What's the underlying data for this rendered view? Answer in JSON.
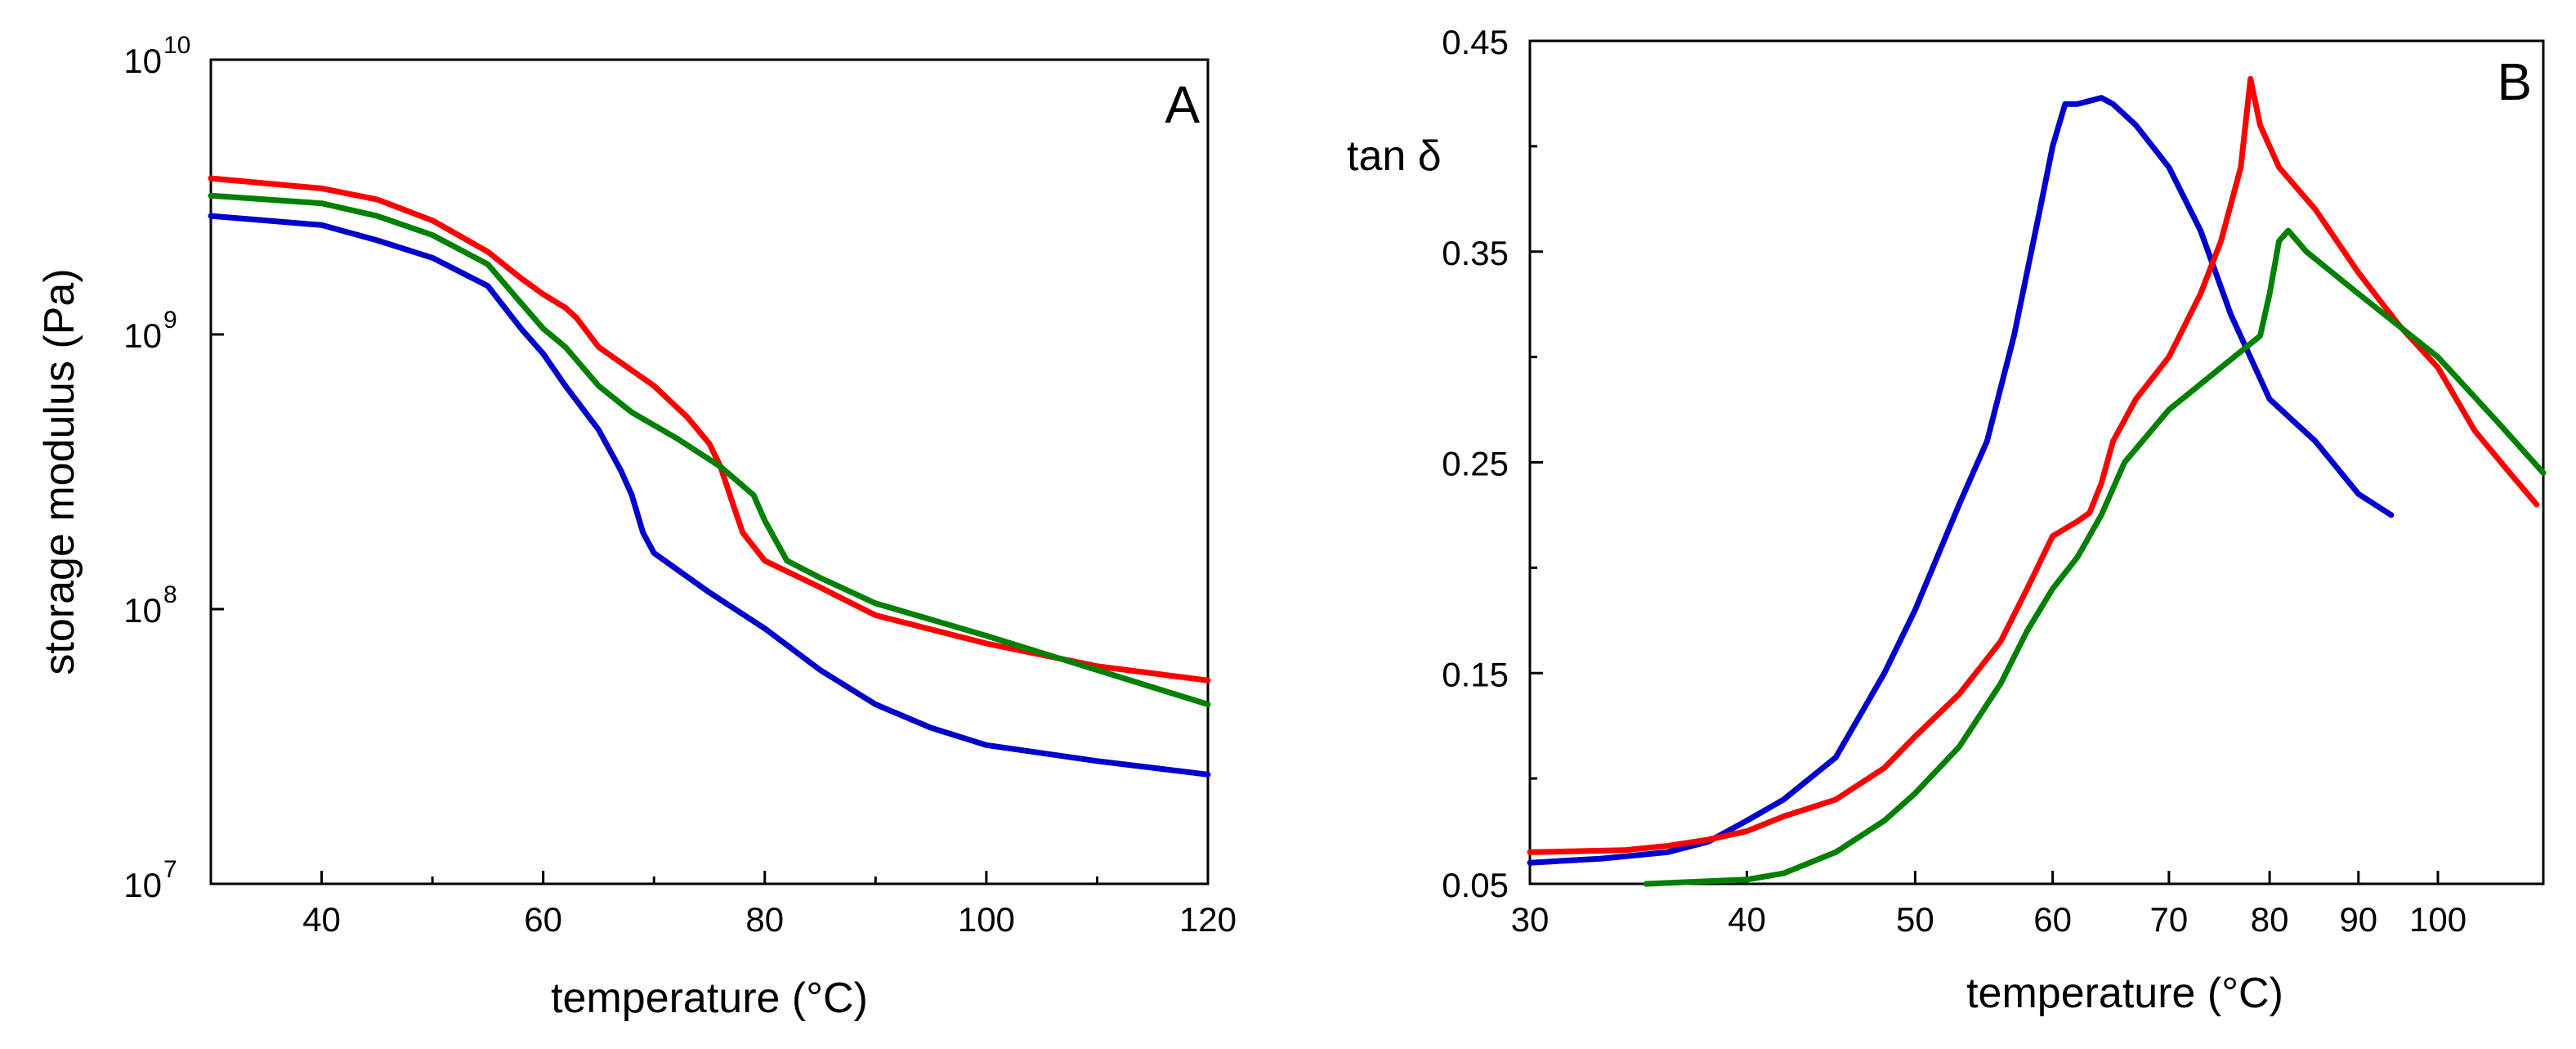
{
  "chart_data": [
    {
      "type": "line",
      "panel_label": "A",
      "xlabel": "temperature (°C)",
      "ylabel": "storage modulus (Pa)",
      "xlim": [
        30,
        120
      ],
      "ylim": [
        10000000,
        10000000000
      ],
      "yscale": "log",
      "xticks": [
        40,
        60,
        80,
        100,
        120
      ],
      "xtick_labels": [
        "40",
        "60",
        "80",
        "100",
        "120"
      ],
      "yticks": [
        {
          "value": 10000000,
          "base": "10",
          "exp": "7"
        },
        {
          "value": 100000000,
          "base": "10",
          "exp": "8"
        },
        {
          "value": 1000000000,
          "base": "10",
          "exp": "9"
        },
        {
          "value": 10000000000,
          "base": "10",
          "exp": "10"
        }
      ],
      "series": [
        {
          "name": "red",
          "color": "#ff0000",
          "points": [
            [
              30,
              3700000000.0
            ],
            [
              40,
              3400000000.0
            ],
            [
              45,
              3100000000.0
            ],
            [
              50,
              2600000000.0
            ],
            [
              55,
              2000000000.0
            ],
            [
              58,
              1600000000.0
            ],
            [
              60,
              1400000000.0
            ],
            [
              62,
              1250000000.0
            ],
            [
              63,
              1150000000.0
            ],
            [
              65,
              900000000.0
            ],
            [
              70,
              650000000.0
            ],
            [
              73,
              500000000.0
            ],
            [
              75,
              400000000.0
            ],
            [
              76,
              330000000.0
            ],
            [
              77,
              250000000.0
            ],
            [
              78,
              190000000.0
            ],
            [
              80,
              150000000.0
            ],
            [
              85,
              120000000.0
            ],
            [
              90,
              95000000.0
            ],
            [
              100,
              75000000.0
            ],
            [
              110,
              62000000.0
            ],
            [
              120,
              55000000.0
            ]
          ]
        },
        {
          "name": "green",
          "color": "#008000",
          "points": [
            [
              30,
              3200000000.0
            ],
            [
              40,
              3000000000.0
            ],
            [
              45,
              2700000000.0
            ],
            [
              50,
              2300000000.0
            ],
            [
              55,
              1800000000.0
            ],
            [
              58,
              1300000000.0
            ],
            [
              60,
              1050000000.0
            ],
            [
              62,
              900000000.0
            ],
            [
              65,
              650000000.0
            ],
            [
              68,
              520000000.0
            ],
            [
              72,
              420000000.0
            ],
            [
              76,
              330000000.0
            ],
            [
              79,
              260000000.0
            ],
            [
              80,
              210000000.0
            ],
            [
              82,
              150000000.0
            ],
            [
              85,
              130000000.0
            ],
            [
              90,
              105000000.0
            ],
            [
              100,
              80000000.0
            ],
            [
              110,
              60000000.0
            ],
            [
              120,
              45000000.0
            ]
          ]
        },
        {
          "name": "blue",
          "color": "#0000cc",
          "points": [
            [
              30,
              2700000000.0
            ],
            [
              40,
              2500000000.0
            ],
            [
              45,
              2200000000.0
            ],
            [
              50,
              1900000000.0
            ],
            [
              55,
              1500000000.0
            ],
            [
              58,
              1050000000.0
            ],
            [
              60,
              850000000.0
            ],
            [
              62,
              650000000.0
            ],
            [
              65,
              450000000.0
            ],
            [
              67,
              320000000.0
            ],
            [
              68,
              260000000.0
            ],
            [
              69,
              190000000.0
            ],
            [
              70,
              160000000.0
            ],
            [
              75,
              115000000.0
            ],
            [
              80,
              85000000.0
            ],
            [
              85,
              60000000.0
            ],
            [
              90,
              45000000.0
            ],
            [
              95,
              37000000.0
            ],
            [
              100,
              32000000.0
            ],
            [
              110,
              28000000.0
            ],
            [
              120,
              25000000.0
            ]
          ]
        }
      ]
    },
    {
      "type": "line",
      "panel_label": "B",
      "xlabel": "temperature (°C)",
      "ylabel": "tan δ",
      "xlim": [
        30,
        115
      ],
      "ylim": [
        0.05,
        0.45
      ],
      "xscale": "log",
      "xticks": [
        30,
        40,
        50,
        60,
        70,
        80,
        90,
        100
      ],
      "xtick_labels": [
        "30",
        "40",
        "50",
        "60",
        "70",
        "80",
        "90",
        "100"
      ],
      "yticks": [
        0.05,
        0.15,
        0.25,
        0.35,
        0.45
      ],
      "ytick_labels": [
        "0.05",
        "0.15",
        "0.25",
        "0.35",
        "0.45"
      ],
      "series": [
        {
          "name": "blue",
          "color": "#0000cc",
          "points": [
            [
              30,
              0.06
            ],
            [
              33,
              0.062
            ],
            [
              36,
              0.065
            ],
            [
              38,
              0.07
            ],
            [
              40,
              0.08
            ],
            [
              42,
              0.09
            ],
            [
              45,
              0.11
            ],
            [
              48,
              0.15
            ],
            [
              50,
              0.18
            ],
            [
              53,
              0.23
            ],
            [
              55,
              0.26
            ],
            [
              57,
              0.31
            ],
            [
              59,
              0.37
            ],
            [
              60,
              0.4
            ],
            [
              61,
              0.42
            ],
            [
              62,
              0.42
            ],
            [
              64,
              0.423
            ],
            [
              65,
              0.42
            ],
            [
              67,
              0.41
            ],
            [
              70,
              0.39
            ],
            [
              73,
              0.36
            ],
            [
              76,
              0.32
            ],
            [
              80,
              0.28
            ],
            [
              85,
              0.26
            ],
            [
              90,
              0.235
            ],
            [
              94,
              0.225
            ]
          ]
        },
        {
          "name": "red",
          "color": "#ff0000",
          "points": [
            [
              30,
              0.065
            ],
            [
              34,
              0.066
            ],
            [
              36,
              0.068
            ],
            [
              38,
              0.071
            ],
            [
              40,
              0.075
            ],
            [
              42,
              0.082
            ],
            [
              45,
              0.09
            ],
            [
              48,
              0.105
            ],
            [
              50,
              0.12
            ],
            [
              53,
              0.14
            ],
            [
              56,
              0.165
            ],
            [
              58,
              0.19
            ],
            [
              60,
              0.215
            ],
            [
              62,
              0.222
            ],
            [
              63,
              0.226
            ],
            [
              64,
              0.24
            ],
            [
              65,
              0.26
            ],
            [
              67,
              0.28
            ],
            [
              70,
              0.3
            ],
            [
              73,
              0.33
            ],
            [
              75,
              0.355
            ],
            [
              77,
              0.39
            ],
            [
              78,
              0.432
            ],
            [
              79,
              0.41
            ],
            [
              81,
              0.39
            ],
            [
              85,
              0.37
            ],
            [
              90,
              0.34
            ],
            [
              95,
              0.315
            ],
            [
              100,
              0.295
            ],
            [
              105,
              0.265
            ],
            [
              110,
              0.245
            ],
            [
              114,
              0.23
            ]
          ]
        },
        {
          "name": "green",
          "color": "#008000",
          "points": [
            [
              35,
              0.05
            ],
            [
              40,
              0.052
            ],
            [
              42,
              0.055
            ],
            [
              45,
              0.065
            ],
            [
              48,
              0.08
            ],
            [
              50,
              0.093
            ],
            [
              53,
              0.115
            ],
            [
              56,
              0.145
            ],
            [
              58,
              0.17
            ],
            [
              60,
              0.19
            ],
            [
              62,
              0.205
            ],
            [
              64,
              0.225
            ],
            [
              66,
              0.25
            ],
            [
              70,
              0.275
            ],
            [
              75,
              0.295
            ],
            [
              79,
              0.31
            ],
            [
              80,
              0.33
            ],
            [
              81,
              0.355
            ],
            [
              82,
              0.36
            ],
            [
              84,
              0.35
            ],
            [
              90,
              0.33
            ],
            [
              100,
              0.3
            ],
            [
              108,
              0.27
            ],
            [
              115,
              0.245
            ]
          ]
        }
      ]
    }
  ]
}
